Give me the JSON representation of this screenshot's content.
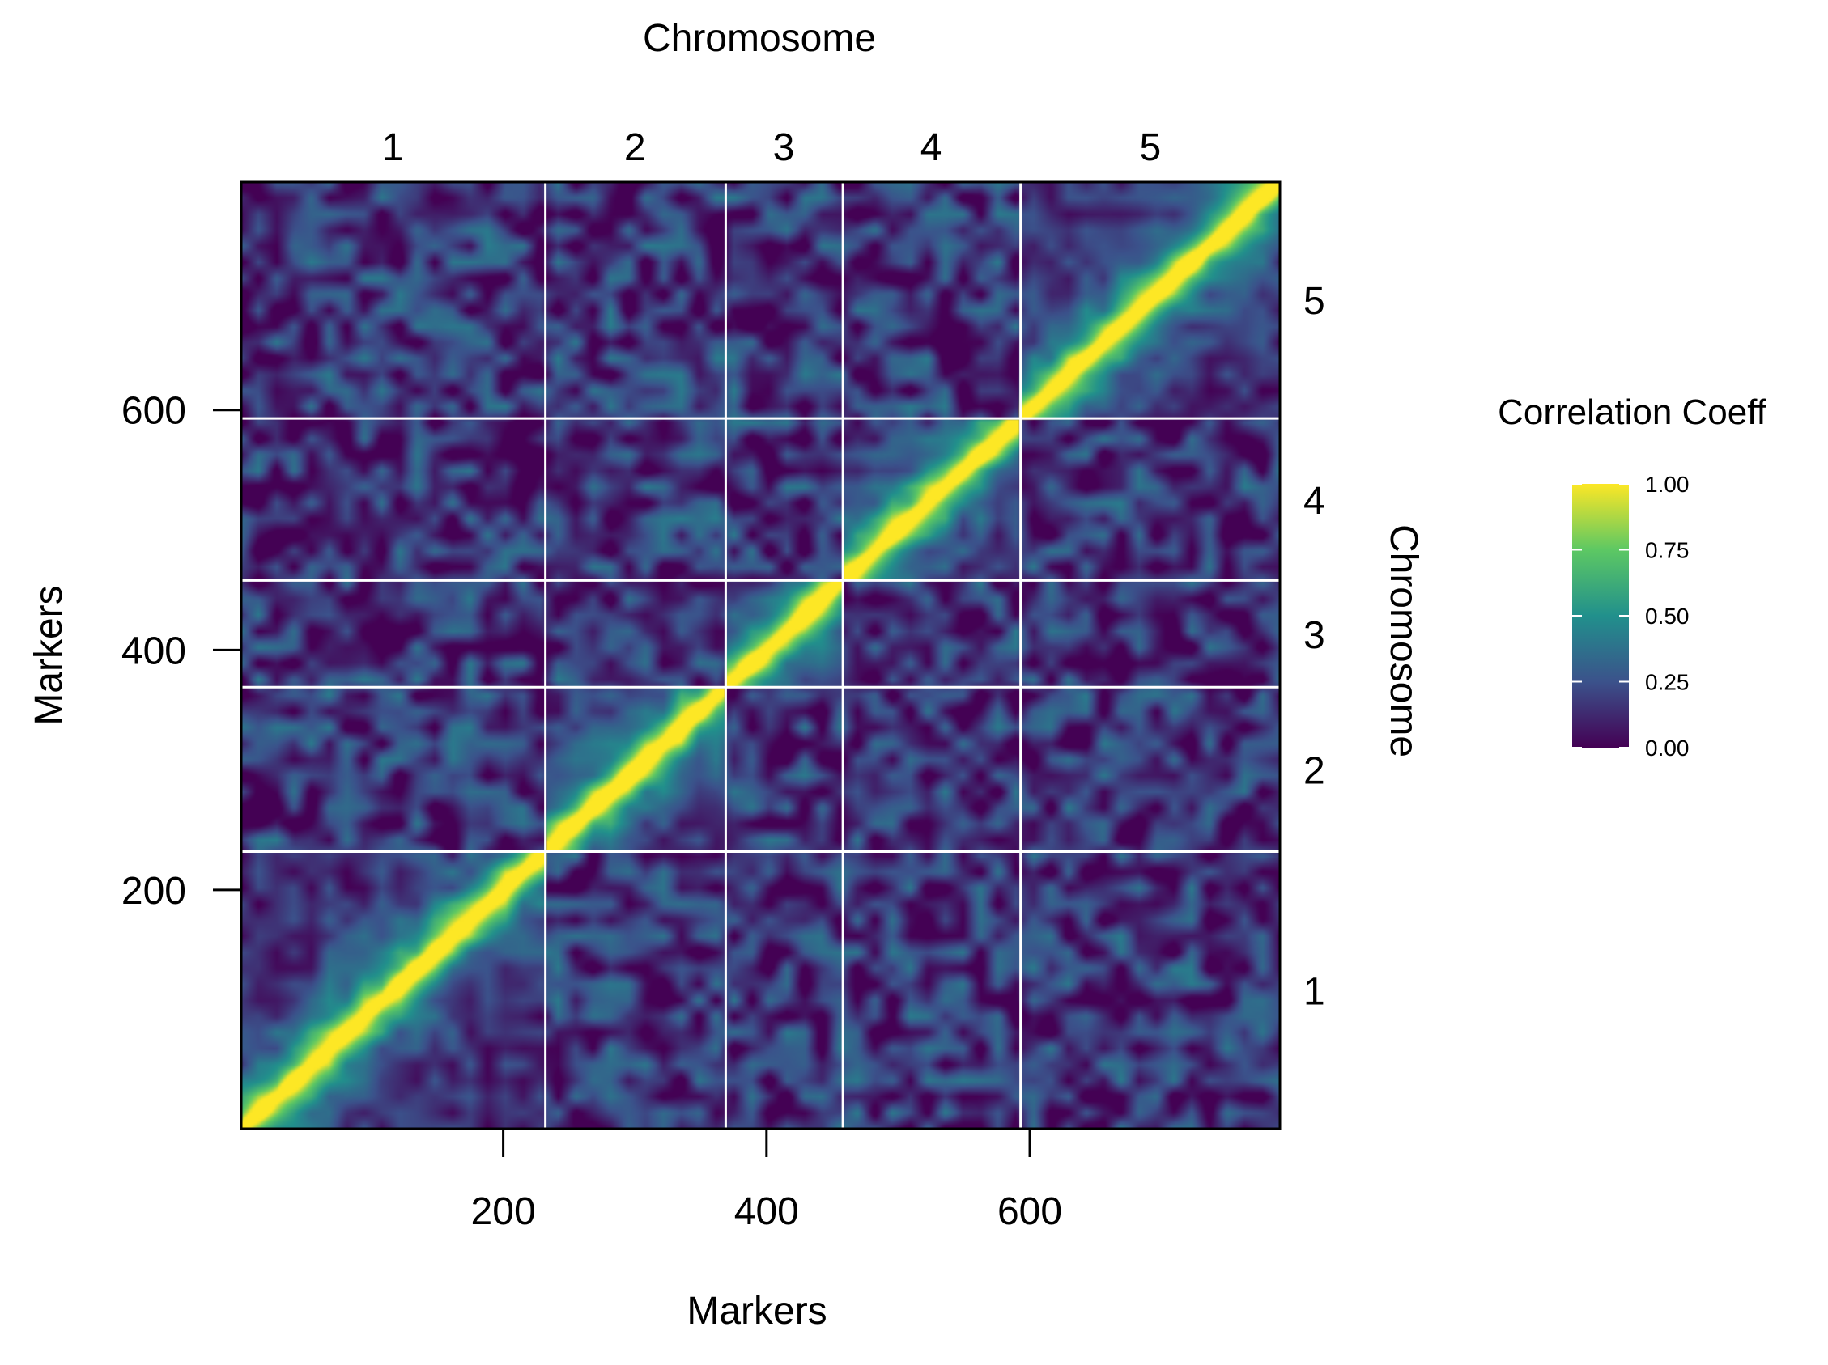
{
  "chart_data": {
    "type": "heatmap",
    "title": "",
    "xlabel": "Markers",
    "ylabel": "Markers",
    "top_axis_label": "Chromosome",
    "right_axis_label": "Chromosome",
    "n_markers": 790,
    "xlim": [
      1,
      790
    ],
    "ylim": [
      1,
      790
    ],
    "x_ticks": [
      200,
      400,
      600
    ],
    "y_ticks": [
      200,
      400,
      600
    ],
    "x_tick_labels": [
      "200",
      "400",
      "600"
    ],
    "y_tick_labels": [
      "200",
      "400",
      "600"
    ],
    "chromosomes": [
      {
        "label": "1",
        "start": 1,
        "end": 231
      },
      {
        "label": "2",
        "start": 232,
        "end": 368
      },
      {
        "label": "3",
        "start": 369,
        "end": 457
      },
      {
        "label": "4",
        "start": 458,
        "end": 592
      },
      {
        "label": "5",
        "start": 593,
        "end": 790
      }
    ],
    "chromosome_boundaries": [
      232,
      369,
      458,
      593
    ],
    "boundary_line_color": "#ffffff",
    "within_chromosome_correlation": {
      "diagonal": 1.0,
      "near_diagonal_range": [
        0.75,
        1.0
      ],
      "typical_background": [
        0.0,
        0.35
      ]
    },
    "between_chromosome_correlation": [
      0.0,
      0.45
    ],
    "colorscale": {
      "name": "viridis",
      "min": 0.0,
      "max": 1.0,
      "stops": [
        "#440154",
        "#3b528b",
        "#21908c",
        "#5dc863",
        "#fde725"
      ]
    },
    "legend": {
      "title": "Correlation Coeff",
      "position": "right",
      "ticks": [
        1.0,
        0.75,
        0.5,
        0.25,
        0.0
      ],
      "tick_labels": [
        "1.00",
        "0.75",
        "0.50",
        "0.25",
        "0.00"
      ]
    }
  }
}
